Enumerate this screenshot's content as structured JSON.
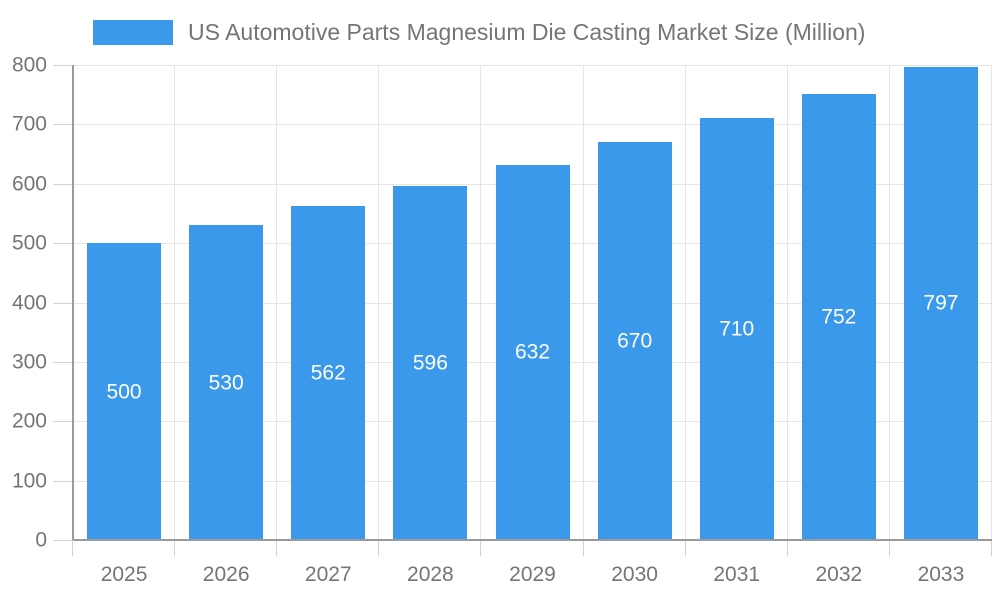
{
  "chart_data": {
    "type": "bar",
    "title": "US Automotive Parts Magnesium Die Casting Market Size (Million)",
    "categories": [
      "2025",
      "2026",
      "2027",
      "2028",
      "2029",
      "2030",
      "2031",
      "2032",
      "2033"
    ],
    "values": [
      500,
      530,
      562,
      596,
      632,
      670,
      710,
      752,
      797
    ],
    "xlabel": "",
    "ylabel": "",
    "ylim": [
      0,
      800
    ],
    "ytick_step": 100,
    "ytick_labels": [
      "0",
      "100",
      "200",
      "300",
      "400",
      "500",
      "600",
      "700",
      "800"
    ],
    "grid": true,
    "legend_position": "top-left",
    "value_label_position": "inside-center",
    "colors": {
      "bar": "#3B99EC",
      "value_label": "#FFFFFF",
      "axis_line": "#9A9A9A",
      "grid_line": "#E6E6E6",
      "tick_line": "#D4D4D4",
      "text": "#757575",
      "background": "#FFFFFF"
    }
  }
}
